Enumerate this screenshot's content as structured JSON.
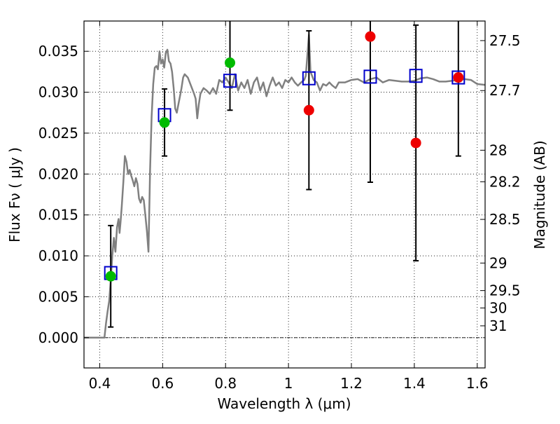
{
  "chart_data": {
    "type": "scatter",
    "xlabel": "Wavelength  λ (μm)",
    "ylabel_left": "Flux  Fν  ( μJy )",
    "ylabel_right": "Magnitude (AB)",
    "xlim": [
      0.35,
      1.625
    ],
    "ylim": [
      -0.0037,
      0.0387
    ],
    "x_ticks": [
      {
        "v": 0.4,
        "label": "0.4"
      },
      {
        "v": 0.6,
        "label": "0.6"
      },
      {
        "v": 0.8,
        "label": "0.8"
      },
      {
        "v": 1.0,
        "label": "1"
      },
      {
        "v": 1.2,
        "label": "1.2"
      },
      {
        "v": 1.4,
        "label": "1.4"
      },
      {
        "v": 1.6,
        "label": "1.6"
      }
    ],
    "y_ticks": [
      {
        "v": 0.0,
        "label": "0.000"
      },
      {
        "v": 0.005,
        "label": "0.005"
      },
      {
        "v": 0.01,
        "label": "0.010"
      },
      {
        "v": 0.015,
        "label": "0.015"
      },
      {
        "v": 0.02,
        "label": "0.020"
      },
      {
        "v": 0.025,
        "label": "0.025"
      },
      {
        "v": 0.03,
        "label": "0.030"
      },
      {
        "v": 0.035,
        "label": "0.035"
      }
    ],
    "mag_ticks": [
      {
        "mag": 27.5,
        "label": "27.5"
      },
      {
        "mag": 27.7,
        "label": "27.7"
      },
      {
        "mag": 28.0,
        "label": "28"
      },
      {
        "mag": 28.2,
        "label": "28.2"
      },
      {
        "mag": 28.5,
        "label": "28.5"
      },
      {
        "mag": 29.0,
        "label": "29"
      },
      {
        "mag": 29.5,
        "label": "29.5"
      },
      {
        "mag": 30.0,
        "label": "30"
      },
      {
        "mag": 31.0,
        "label": "31"
      }
    ],
    "grid": true,
    "zero_line": true,
    "colors": {
      "sed": "#808080",
      "model_box": "#0000cc",
      "detection": "#00bb00",
      "upper": "#ee0000",
      "errorbar": "#000000"
    },
    "sed_model": [
      [
        0.35,
        0.0
      ],
      [
        0.37,
        0.0
      ],
      [
        0.39,
        0.0
      ],
      [
        0.41,
        0.0
      ],
      [
        0.415,
        0.0
      ],
      [
        0.42,
        0.0018
      ],
      [
        0.425,
        0.0032
      ],
      [
        0.43,
        0.0045
      ],
      [
        0.435,
        0.007
      ],
      [
        0.44,
        0.01
      ],
      [
        0.445,
        0.0122
      ],
      [
        0.45,
        0.0105
      ],
      [
        0.455,
        0.0135
      ],
      [
        0.46,
        0.0145
      ],
      [
        0.463,
        0.0128
      ],
      [
        0.466,
        0.014
      ],
      [
        0.47,
        0.016
      ],
      [
        0.475,
        0.019
      ],
      [
        0.48,
        0.0222
      ],
      [
        0.485,
        0.0215
      ],
      [
        0.49,
        0.02
      ],
      [
        0.495,
        0.0205
      ],
      [
        0.5,
        0.0198
      ],
      [
        0.505,
        0.0192
      ],
      [
        0.51,
        0.0185
      ],
      [
        0.515,
        0.0195
      ],
      [
        0.52,
        0.0188
      ],
      [
        0.525,
        0.017
      ],
      [
        0.53,
        0.0165
      ],
      [
        0.535,
        0.0172
      ],
      [
        0.54,
        0.0168
      ],
      [
        0.545,
        0.015
      ],
      [
        0.55,
        0.013
      ],
      [
        0.555,
        0.0105
      ],
      [
        0.56,
        0.0205
      ],
      [
        0.565,
        0.027
      ],
      [
        0.57,
        0.031
      ],
      [
        0.575,
        0.033
      ],
      [
        0.58,
        0.0332
      ],
      [
        0.585,
        0.0328
      ],
      [
        0.59,
        0.035
      ],
      [
        0.595,
        0.0335
      ],
      [
        0.6,
        0.034
      ],
      [
        0.605,
        0.033
      ],
      [
        0.61,
        0.0348
      ],
      [
        0.615,
        0.0352
      ],
      [
        0.62,
        0.0338
      ],
      [
        0.625,
        0.0335
      ],
      [
        0.63,
        0.0325
      ],
      [
        0.635,
        0.0305
      ],
      [
        0.64,
        0.028
      ],
      [
        0.645,
        0.0275
      ],
      [
        0.65,
        0.0285
      ],
      [
        0.655,
        0.0295
      ],
      [
        0.66,
        0.0305
      ],
      [
        0.665,
        0.0318
      ],
      [
        0.67,
        0.0322
      ],
      [
        0.68,
        0.0318
      ],
      [
        0.69,
        0.0308
      ],
      [
        0.7,
        0.0298
      ],
      [
        0.705,
        0.0292
      ],
      [
        0.71,
        0.0268
      ],
      [
        0.715,
        0.0285
      ],
      [
        0.72,
        0.0298
      ],
      [
        0.73,
        0.0305
      ],
      [
        0.74,
        0.0302
      ],
      [
        0.75,
        0.0298
      ],
      [
        0.76,
        0.0305
      ],
      [
        0.77,
        0.0298
      ],
      [
        0.78,
        0.0315
      ],
      [
        0.79,
        0.0312
      ],
      [
        0.8,
        0.0318
      ],
      [
        0.81,
        0.0312
      ],
      [
        0.82,
        0.0305
      ],
      [
        0.83,
        0.0322
      ],
      [
        0.84,
        0.0302
      ],
      [
        0.85,
        0.0312
      ],
      [
        0.86,
        0.0305
      ],
      [
        0.87,
        0.0315
      ],
      [
        0.88,
        0.0298
      ],
      [
        0.89,
        0.0312
      ],
      [
        0.9,
        0.0318
      ],
      [
        0.91,
        0.0302
      ],
      [
        0.92,
        0.0312
      ],
      [
        0.93,
        0.0295
      ],
      [
        0.94,
        0.0308
      ],
      [
        0.95,
        0.0318
      ],
      [
        0.96,
        0.0308
      ],
      [
        0.97,
        0.0312
      ],
      [
        0.98,
        0.0305
      ],
      [
        0.99,
        0.0315
      ],
      [
        1.0,
        0.0312
      ],
      [
        1.01,
        0.0318
      ],
      [
        1.02,
        0.0312
      ],
      [
        1.03,
        0.0308
      ],
      [
        1.04,
        0.0312
      ],
      [
        1.05,
        0.0315
      ],
      [
        1.055,
        0.032
      ],
      [
        1.06,
        0.0345
      ],
      [
        1.065,
        0.037
      ],
      [
        1.07,
        0.0325
      ],
      [
        1.08,
        0.0315
      ],
      [
        1.09,
        0.0312
      ],
      [
        1.1,
        0.0302
      ],
      [
        1.11,
        0.031
      ],
      [
        1.12,
        0.0308
      ],
      [
        1.13,
        0.0312
      ],
      [
        1.14,
        0.0308
      ],
      [
        1.15,
        0.0305
      ],
      [
        1.16,
        0.0312
      ],
      [
        1.18,
        0.0312
      ],
      [
        1.2,
        0.0315
      ],
      [
        1.22,
        0.0316
      ],
      [
        1.24,
        0.0312
      ],
      [
        1.26,
        0.0316
      ],
      [
        1.28,
        0.0318
      ],
      [
        1.3,
        0.0312
      ],
      [
        1.32,
        0.0315
      ],
      [
        1.34,
        0.0314
      ],
      [
        1.36,
        0.0313
      ],
      [
        1.38,
        0.0313
      ],
      [
        1.4,
        0.0314
      ],
      [
        1.42,
        0.0317
      ],
      [
        1.44,
        0.0318
      ],
      [
        1.46,
        0.0316
      ],
      [
        1.48,
        0.0313
      ],
      [
        1.5,
        0.0313
      ],
      [
        1.52,
        0.0314
      ],
      [
        1.54,
        0.0315
      ],
      [
        1.56,
        0.0316
      ],
      [
        1.58,
        0.0315
      ],
      [
        1.6,
        0.031
      ],
      [
        1.625,
        0.0309
      ]
    ],
    "model_photometry": [
      {
        "x": 0.435,
        "y": 0.0079
      },
      {
        "x": 0.606,
        "y": 0.0272
      },
      {
        "x": 0.814,
        "y": 0.0314
      },
      {
        "x": 1.065,
        "y": 0.0317
      },
      {
        "x": 1.26,
        "y": 0.0319
      },
      {
        "x": 1.405,
        "y": 0.032
      },
      {
        "x": 1.54,
        "y": 0.0318
      }
    ],
    "observed_photometry": [
      {
        "x": 0.435,
        "y": 0.0075,
        "err": 0.0062,
        "color": "detection"
      },
      {
        "x": 0.606,
        "y": 0.0263,
        "err": 0.0041,
        "color": "detection"
      },
      {
        "x": 0.814,
        "y": 0.0336,
        "err": 0.0058,
        "color": "detection"
      },
      {
        "x": 1.065,
        "y": 0.0278,
        "err": 0.0097,
        "color": "upper"
      },
      {
        "x": 1.26,
        "y": 0.0368,
        "err": 0.0178,
        "color": "upper"
      },
      {
        "x": 1.405,
        "y": 0.0238,
        "err": 0.0144,
        "color": "upper"
      },
      {
        "x": 1.54,
        "y": 0.0318,
        "err": 0.0096,
        "color": "upper"
      }
    ]
  }
}
